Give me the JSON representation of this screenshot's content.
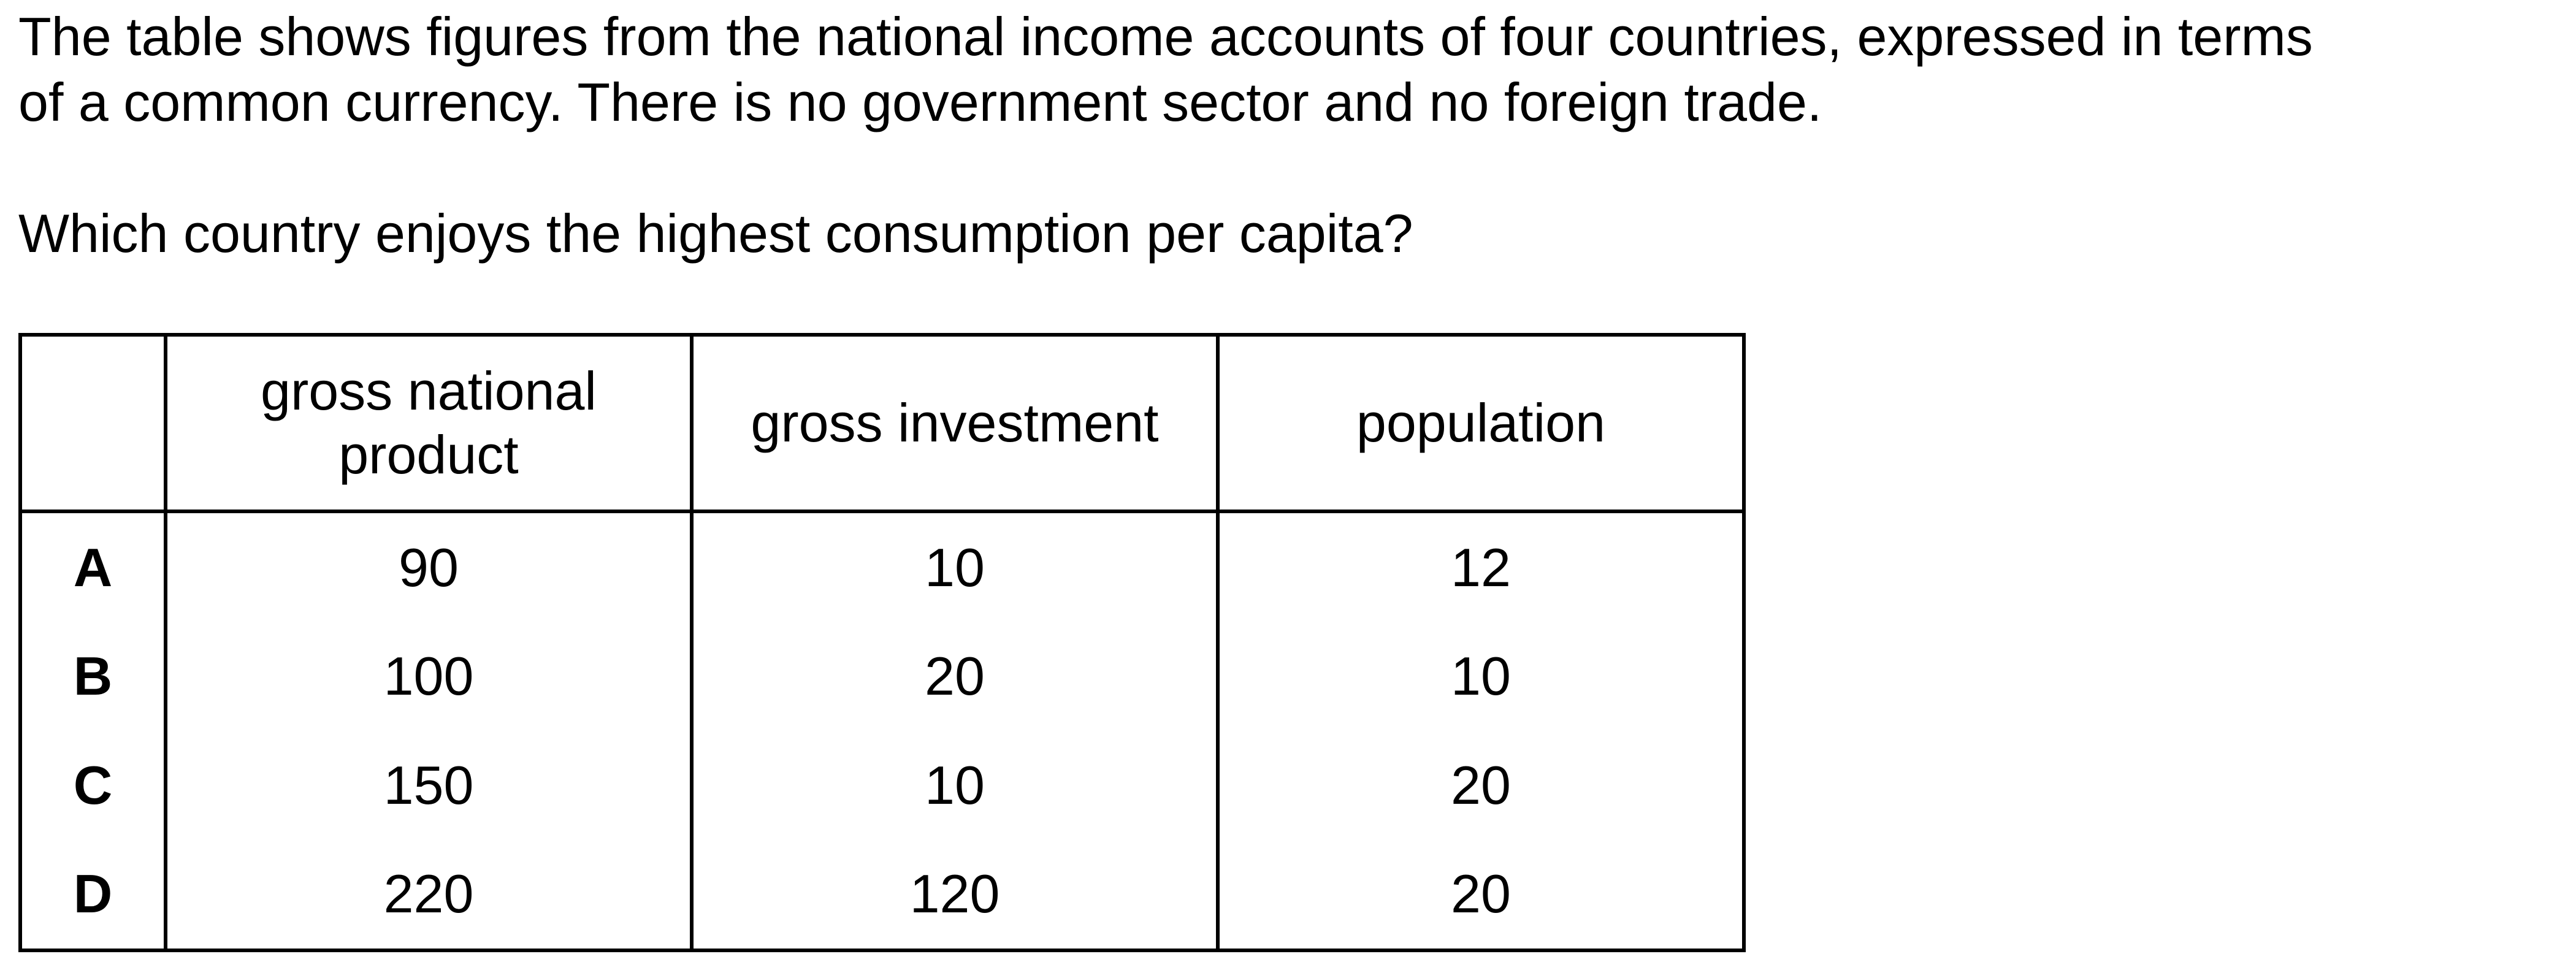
{
  "intro": {
    "line1": "The table shows figures from the national income accounts of four countries, expressed in terms",
    "line2": "of a common currency. There is no government sector and no foreign trade."
  },
  "question": "Which country enjoys the highest consumption per capita?",
  "table": {
    "headers": {
      "label": "",
      "gnp_line1": "gross national",
      "gnp_line2": "product",
      "investment": "gross investment",
      "population": "population"
    },
    "rows": [
      {
        "label": "A",
        "gnp": "90",
        "investment": "10",
        "population": "12"
      },
      {
        "label": "B",
        "gnp": "100",
        "investment": "20",
        "population": "10"
      },
      {
        "label": "C",
        "gnp": "150",
        "investment": "10",
        "population": "20"
      },
      {
        "label": "D",
        "gnp": "220",
        "investment": "120",
        "population": "20"
      }
    ]
  }
}
